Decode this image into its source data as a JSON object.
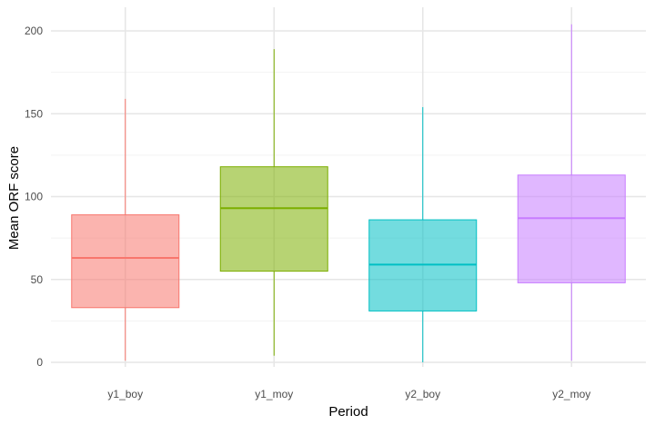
{
  "chart_data": {
    "type": "boxplot",
    "xlabel": "Period",
    "ylabel": "Mean ORF score",
    "ylim": [
      -2,
      212
    ],
    "yticks": [
      0,
      50,
      100,
      150,
      200
    ],
    "grid": true,
    "categories": [
      "y1_boy",
      "y1_moy",
      "y2_boy",
      "y2_moy"
    ],
    "boxes": [
      {
        "name": "y1_boy",
        "min": 1,
        "q1": 33,
        "median": 63,
        "q3": 89,
        "max": 159,
        "color": "#F8766D"
      },
      {
        "name": "y1_moy",
        "min": 4,
        "q1": 55,
        "median": 93,
        "q3": 118,
        "max": 189,
        "color": "#7CAE00"
      },
      {
        "name": "y2_boy",
        "min": 0,
        "q1": 31,
        "median": 59,
        "q3": 86,
        "max": 154,
        "color": "#00BFC4"
      },
      {
        "name": "y2_moy",
        "min": 1,
        "q1": 48,
        "median": 87,
        "q3": 113,
        "max": 204,
        "color": "#C77CFF"
      }
    ]
  }
}
